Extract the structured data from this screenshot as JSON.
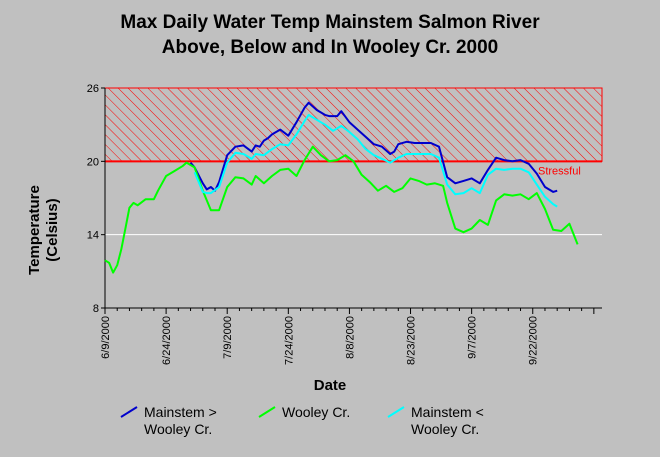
{
  "chart_data": {
    "type": "line",
    "title_line1": "Max Daily Water Temp Mainstem Salmon River",
    "title_line2": "Above, Below and In Wooley Cr. 2000",
    "xlabel": "Date",
    "ylabel_line1": "Temperature",
    "ylabel_line2": "(Celsius)",
    "ylim": [
      8,
      26
    ],
    "yticks": [
      8,
      14,
      20,
      26
    ],
    "xlim": [
      "2000-06-09",
      "2000-10-09"
    ],
    "xticks": [
      "6/9/2000",
      "6/24/2000",
      "7/9/2000",
      "7/24/2000",
      "8/8/2000",
      "8/23/2000",
      "9/7/2000",
      "9/22/2000"
    ],
    "threshold": {
      "value": 20,
      "label": "Stressful",
      "color": "#ff0000"
    },
    "hatch_band": [
      20,
      26
    ],
    "grid": "horizontal",
    "series": [
      {
        "name": "Mainstem > Wooley Cr.",
        "color": "#0000cc",
        "x": [
          "2000-06-30",
          "2000-07-01",
          "2000-07-03",
          "2000-07-04",
          "2000-07-05",
          "2000-07-06",
          "2000-07-07",
          "2000-07-09",
          "2000-07-11",
          "2000-07-13",
          "2000-07-15",
          "2000-07-16",
          "2000-07-17",
          "2000-07-18",
          "2000-07-19",
          "2000-07-20",
          "2000-07-22",
          "2000-07-24",
          "2000-07-26",
          "2000-07-28",
          "2000-07-29",
          "2000-07-31",
          "2000-08-02",
          "2000-08-03",
          "2000-08-05",
          "2000-08-06",
          "2000-08-08",
          "2000-08-10",
          "2000-08-12",
          "2000-08-14",
          "2000-08-16",
          "2000-08-18",
          "2000-08-19",
          "2000-08-20",
          "2000-08-22",
          "2000-08-24",
          "2000-08-26",
          "2000-08-28",
          "2000-08-30",
          "2000-09-01",
          "2000-09-03",
          "2000-09-05",
          "2000-09-07",
          "2000-09-09",
          "2000-09-11",
          "2000-09-13",
          "2000-09-15",
          "2000-09-17",
          "2000-09-19",
          "2000-09-21",
          "2000-09-23",
          "2000-09-25",
          "2000-09-27",
          "2000-09-28"
        ],
        "values": [
          19.9,
          19.5,
          18.2,
          17.7,
          17.9,
          17.6,
          18.3,
          20.5,
          21.2,
          21.3,
          20.8,
          21.3,
          21.2,
          21.7,
          21.9,
          22.2,
          22.6,
          22.1,
          23.2,
          24.4,
          24.8,
          24.2,
          23.8,
          23.7,
          23.7,
          24.1,
          23.2,
          22.6,
          22.0,
          21.4,
          21.2,
          20.6,
          20.8,
          21.4,
          21.6,
          21.5,
          21.5,
          21.5,
          21.2,
          18.7,
          18.2,
          18.4,
          18.6,
          18.2,
          19.3,
          20.3,
          20.1,
          20.0,
          20.1,
          19.8,
          19.0,
          17.9,
          17.5,
          17.6
        ]
      },
      {
        "name": "Wooley Cr.",
        "color": "#00ff00",
        "x": [
          "2000-06-09",
          "2000-06-10",
          "2000-06-11",
          "2000-06-12",
          "2000-06-13",
          "2000-06-14",
          "2000-06-15",
          "2000-06-16",
          "2000-06-17",
          "2000-06-19",
          "2000-06-21",
          "2000-06-22",
          "2000-06-24",
          "2000-06-26",
          "2000-06-28",
          "2000-06-29",
          "2000-07-01",
          "2000-07-03",
          "2000-07-04",
          "2000-07-05",
          "2000-07-07",
          "2000-07-09",
          "2000-07-11",
          "2000-07-13",
          "2000-07-15",
          "2000-07-16",
          "2000-07-18",
          "2000-07-20",
          "2000-07-22",
          "2000-07-24",
          "2000-07-26",
          "2000-07-28",
          "2000-07-30",
          "2000-08-01",
          "2000-08-03",
          "2000-08-05",
          "2000-08-07",
          "2000-08-09",
          "2000-08-11",
          "2000-08-13",
          "2000-08-15",
          "2000-08-17",
          "2000-08-19",
          "2000-08-21",
          "2000-08-23",
          "2000-08-25",
          "2000-08-27",
          "2000-08-29",
          "2000-08-31",
          "2000-09-01",
          "2000-09-03",
          "2000-09-05",
          "2000-09-07",
          "2000-09-09",
          "2000-09-11",
          "2000-09-13",
          "2000-09-15",
          "2000-09-17",
          "2000-09-19",
          "2000-09-21",
          "2000-09-23",
          "2000-09-25",
          "2000-09-27",
          "2000-09-29",
          "2000-10-01",
          "2000-10-03"
        ],
        "values": [
          11.9,
          11.7,
          10.9,
          11.5,
          12.8,
          14.5,
          16.2,
          16.6,
          16.4,
          16.9,
          16.9,
          17.6,
          18.8,
          19.2,
          19.6,
          19.9,
          19.5,
          17.6,
          16.8,
          16.0,
          16.0,
          17.9,
          18.7,
          18.6,
          18.1,
          18.8,
          18.2,
          18.8,
          19.3,
          19.4,
          18.8,
          20.1,
          21.2,
          20.5,
          20.0,
          20.1,
          20.5,
          20.0,
          18.9,
          18.3,
          17.6,
          18.0,
          17.5,
          17.8,
          18.6,
          18.4,
          18.1,
          18.2,
          18.0,
          16.6,
          14.5,
          14.2,
          14.5,
          15.2,
          14.8,
          16.8,
          17.3,
          17.2,
          17.3,
          16.9,
          17.4,
          16.1,
          14.4,
          14.3,
          14.9,
          13.2
        ]
      },
      {
        "name": "Mainstem < Wooley Cr.",
        "color": "#00ffff",
        "x": [
          "2000-07-01",
          "2000-07-03",
          "2000-07-04",
          "2000-07-05",
          "2000-07-07",
          "2000-07-09",
          "2000-07-11",
          "2000-07-13",
          "2000-07-15",
          "2000-07-16",
          "2000-07-18",
          "2000-07-20",
          "2000-07-22",
          "2000-07-24",
          "2000-07-26",
          "2000-07-28",
          "2000-07-29",
          "2000-07-31",
          "2000-08-02",
          "2000-08-04",
          "2000-08-06",
          "2000-08-08",
          "2000-08-10",
          "2000-08-12",
          "2000-08-14",
          "2000-08-16",
          "2000-08-18",
          "2000-08-20",
          "2000-08-22",
          "2000-08-24",
          "2000-08-26",
          "2000-08-28",
          "2000-08-30",
          "2000-09-01",
          "2000-09-03",
          "2000-09-05",
          "2000-09-07",
          "2000-09-09",
          "2000-09-11",
          "2000-09-13",
          "2000-09-15",
          "2000-09-17",
          "2000-09-19",
          "2000-09-21",
          "2000-09-23",
          "2000-09-25",
          "2000-09-27",
          "2000-09-28"
        ],
        "values": [
          19.1,
          17.5,
          17.4,
          17.4,
          17.9,
          19.9,
          20.7,
          20.6,
          20.2,
          20.6,
          20.5,
          21.0,
          21.4,
          21.3,
          22.2,
          23.3,
          23.8,
          23.4,
          23.0,
          22.5,
          22.9,
          22.4,
          21.8,
          21.0,
          20.5,
          20.2,
          19.9,
          20.3,
          20.6,
          20.6,
          20.6,
          20.6,
          20.3,
          18.1,
          17.3,
          17.4,
          17.8,
          17.4,
          18.9,
          19.4,
          19.3,
          19.4,
          19.4,
          19.1,
          18.1,
          17.1,
          16.5,
          16.3
        ]
      }
    ]
  }
}
